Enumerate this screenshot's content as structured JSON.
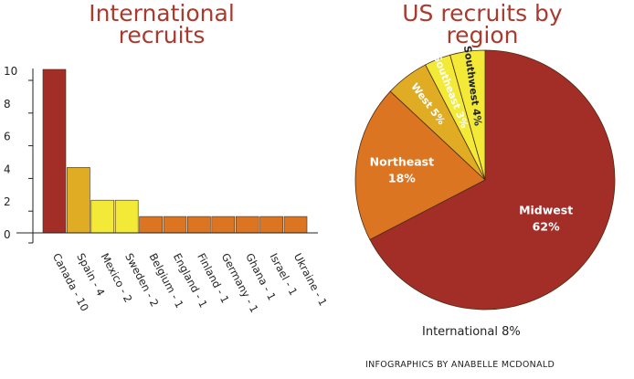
{
  "chart_data": [
    {
      "type": "bar",
      "title": "International recruits",
      "categories": [
        "Canada - 10",
        "Spain - 4",
        "Mexico - 2",
        "Sweden - 2",
        "Belgium - 1",
        "England - 1",
        "Finland - 1",
        "Germany - 1",
        "Ghana - 1",
        "Israel - 1",
        "Ukraine - 1"
      ],
      "values": [
        10,
        4,
        2,
        2,
        1,
        1,
        1,
        1,
        1,
        1,
        1
      ],
      "colors": [
        "#a32e27",
        "#dfac24",
        "#f2ea36",
        "#f2ea36",
        "#dc7521",
        "#dc7521",
        "#dc7521",
        "#dc7521",
        "#dc7521",
        "#dc7521",
        "#dc7521"
      ],
      "ylim": [
        0,
        10
      ],
      "yticks": [
        "0",
        "2",
        "4",
        "6",
        "8",
        "10"
      ],
      "xlabel": "",
      "ylabel": "",
      "grid": false
    },
    {
      "type": "pie",
      "title": "US recruits by region",
      "slices": [
        {
          "name": "Midwest",
          "value": 62,
          "label": "62%",
          "color": "#a32e27",
          "text_color": "#ffffff"
        },
        {
          "name": "Northeast",
          "value": 18,
          "label": "18%",
          "color": "#dc7521",
          "text_color": "#ffffff"
        },
        {
          "name": "West",
          "value": 5,
          "label": "5%",
          "color": "#dfac24",
          "text_color": "#ffffff"
        },
        {
          "name": "Southeast",
          "value": 3,
          "label": "3%",
          "color": "#f2ea36",
          "text_color": "#ffffff"
        },
        {
          "name": "Southwest",
          "value": 4,
          "label": "4%",
          "color": "#f2ea36",
          "text_color": "#222222"
        }
      ],
      "external_label": "International 8%"
    }
  ],
  "credit": "INFOGRAPHICS BY ANABELLE MCDONALD"
}
